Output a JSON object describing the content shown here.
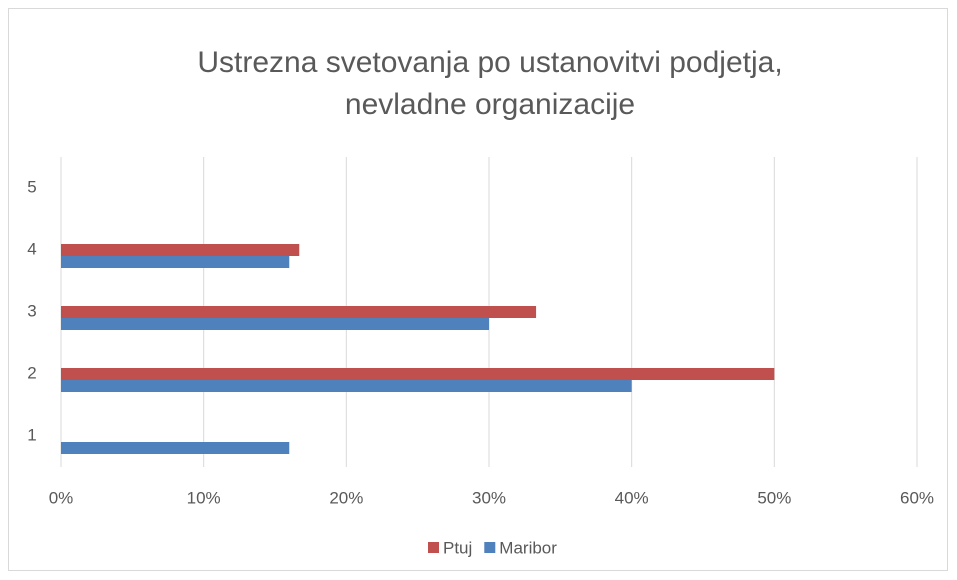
{
  "chart_data": {
    "type": "hbar",
    "title": [
      "Ustrezna svetovanja po ustanovitvi podjetja,",
      "nevladne organizacije"
    ],
    "categories": [
      "1",
      "2",
      "3",
      "4",
      "5"
    ],
    "series": [
      {
        "name": "Ptuj",
        "color": "#c0504d",
        "values": [
          0,
          50,
          33.3,
          16.7,
          0
        ]
      },
      {
        "name": "Maribor",
        "color": "#4f81bd",
        "values": [
          16,
          40,
          30,
          16,
          0
        ]
      }
    ],
    "xlim": [
      0,
      60
    ],
    "xticks": [
      {
        "value": 0,
        "label": "0%"
      },
      {
        "value": 10,
        "label": "10%"
      },
      {
        "value": 20,
        "label": "20%"
      },
      {
        "value": 30,
        "label": "30%"
      },
      {
        "value": 40,
        "label": "40%"
      },
      {
        "value": 50,
        "label": "50%"
      },
      {
        "value": 60,
        "label": "60%"
      }
    ],
    "grid": true,
    "legend": "bottom"
  }
}
